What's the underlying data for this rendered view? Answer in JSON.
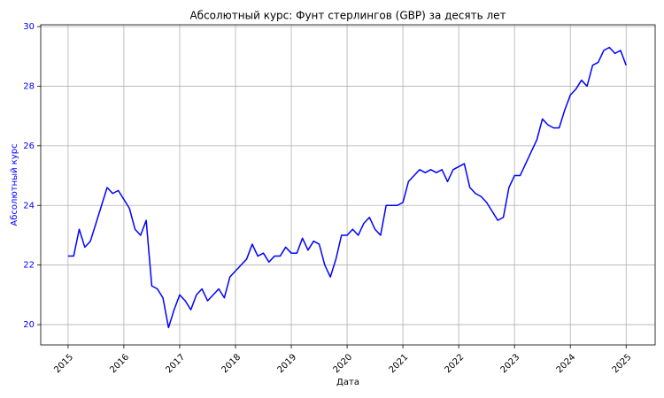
{
  "chart_data": {
    "type": "line",
    "title": "Абсолютный курс: Фунт стерлингов (GBP) за десять лет",
    "x_label": "Дата",
    "y_label": "Абсолютный курс",
    "color": "#0000ff",
    "axis_color": "#0000ff",
    "grid": true,
    "x": [
      2015.0,
      2015.1,
      2015.2,
      2015.3,
      2015.4,
      2015.5,
      2015.6,
      2015.7,
      2015.8,
      2015.9,
      2016.0,
      2016.1,
      2016.2,
      2016.3,
      2016.4,
      2016.5,
      2016.6,
      2016.7,
      2016.8,
      2016.9,
      2017.0,
      2017.1,
      2017.2,
      2017.3,
      2017.4,
      2017.5,
      2017.6,
      2017.7,
      2017.8,
      2017.9,
      2018.0,
      2018.1,
      2018.2,
      2018.3,
      2018.4,
      2018.5,
      2018.6,
      2018.7,
      2018.8,
      2018.9,
      2019.0,
      2019.1,
      2019.2,
      2019.3,
      2019.4,
      2019.5,
      2019.6,
      2019.7,
      2019.8,
      2019.9,
      2020.0,
      2020.1,
      2020.2,
      2020.3,
      2020.4,
      2020.5,
      2020.6,
      2020.7,
      2020.8,
      2020.9,
      2021.0,
      2021.1,
      2021.2,
      2021.3,
      2021.4,
      2021.5,
      2021.6,
      2021.7,
      2021.8,
      2021.9,
      2022.0,
      2022.1,
      2022.2,
      2022.3,
      2022.4,
      2022.5,
      2022.6,
      2022.7,
      2022.8,
      2022.9,
      2023.0,
      2023.1,
      2023.2,
      2023.3,
      2023.4,
      2023.5,
      2023.6,
      2023.7,
      2023.8,
      2023.9,
      2024.0,
      2024.1,
      2024.2,
      2024.3,
      2024.4,
      2024.5,
      2024.6,
      2024.7,
      2024.8,
      2024.9,
      2025.0
    ],
    "values": [
      22.3,
      22.3,
      23.2,
      22.6,
      22.8,
      23.4,
      24.0,
      24.6,
      24.4,
      24.5,
      24.2,
      23.9,
      23.2,
      23.0,
      23.5,
      21.3,
      21.2,
      20.9,
      19.9,
      20.5,
      21.0,
      20.8,
      20.5,
      21.0,
      21.2,
      20.8,
      21.0,
      21.2,
      20.9,
      21.6,
      21.8,
      22.0,
      22.2,
      22.7,
      22.3,
      22.4,
      22.1,
      22.3,
      22.3,
      22.6,
      22.4,
      22.4,
      22.9,
      22.5,
      22.8,
      22.7,
      22.0,
      21.6,
      22.2,
      23.0,
      23.0,
      23.2,
      23.0,
      23.4,
      23.6,
      23.2,
      23.0,
      24.0,
      24.0,
      24.0,
      24.1,
      24.8,
      25.0,
      25.2,
      25.1,
      25.2,
      25.1,
      25.2,
      24.8,
      25.2,
      25.3,
      25.4,
      24.6,
      24.4,
      24.3,
      24.1,
      23.8,
      23.5,
      23.6,
      24.6,
      25.0,
      25.0,
      25.4,
      25.8,
      26.2,
      26.9,
      26.7,
      26.6,
      26.6,
      27.2,
      27.7,
      27.9,
      28.2,
      28.0,
      28.7,
      28.8,
      29.2,
      29.3,
      29.1,
      29.2,
      28.7
    ],
    "xlim": [
      2014.51,
      2025.52
    ],
    "ylim": [
      19.32,
      30.06
    ],
    "xticks": [
      2015,
      2016,
      2017,
      2018,
      2019,
      2020,
      2021,
      2022,
      2023,
      2024,
      2025
    ],
    "yticks": [
      20,
      22,
      24,
      26,
      28,
      30
    ]
  }
}
